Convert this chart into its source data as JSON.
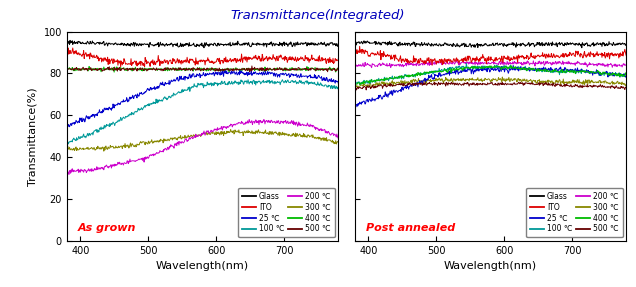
{
  "title": "Transmittance(Integrated)",
  "title_color": "#0000bb",
  "xlabel": "Wavelength(nm)",
  "ylabel": "Transmittance(%)",
  "xlim": [
    380,
    780
  ],
  "ylim": [
    0,
    100
  ],
  "yticks": [
    0,
    20,
    40,
    60,
    80,
    100
  ],
  "label1": "As grown",
  "label2": "Post annealed",
  "label_color": "red",
  "colors": {
    "Glass": "#000000",
    "ITO": "#dd0000",
    "25": "#0000cc",
    "100": "#009999",
    "200": "#cc00cc",
    "300": "#888800",
    "400": "#00bb00",
    "500": "#660000"
  },
  "left_curves": {
    "Glass": [
      [
        380,
        95
      ],
      [
        450,
        94
      ],
      [
        550,
        93.5
      ],
      [
        650,
        94
      ],
      [
        750,
        94
      ],
      [
        780,
        94
      ]
    ],
    "ITO": [
      [
        380,
        91
      ],
      [
        420,
        88
      ],
      [
        460,
        85
      ],
      [
        500,
        85
      ],
      [
        550,
        86
      ],
      [
        600,
        86
      ],
      [
        650,
        87
      ],
      [
        700,
        87
      ],
      [
        750,
        87
      ],
      [
        780,
        86
      ]
    ],
    "400": [
      [
        380,
        82
      ],
      [
        450,
        82
      ],
      [
        550,
        82
      ],
      [
        650,
        82
      ],
      [
        750,
        82
      ],
      [
        780,
        82
      ]
    ],
    "500": [
      [
        380,
        82
      ],
      [
        450,
        82
      ],
      [
        550,
        82
      ],
      [
        650,
        82
      ],
      [
        750,
        82
      ],
      [
        780,
        82
      ]
    ],
    "100": [
      [
        380,
        47
      ],
      [
        420,
        52
      ],
      [
        460,
        58
      ],
      [
        500,
        65
      ],
      [
        540,
        70
      ],
      [
        570,
        74
      ],
      [
        600,
        75
      ],
      [
        640,
        76
      ],
      [
        680,
        76
      ],
      [
        720,
        76
      ],
      [
        750,
        75
      ],
      [
        780,
        73
      ]
    ],
    "25": [
      [
        380,
        55
      ],
      [
        420,
        60
      ],
      [
        460,
        66
      ],
      [
        500,
        72
      ],
      [
        540,
        77
      ],
      [
        570,
        79
      ],
      [
        600,
        80
      ],
      [
        640,
        80
      ],
      [
        680,
        80
      ],
      [
        720,
        79
      ],
      [
        750,
        78
      ],
      [
        780,
        76
      ]
    ],
    "300": [
      [
        380,
        44
      ],
      [
        420,
        44
      ],
      [
        460,
        45
      ],
      [
        500,
        47
      ],
      [
        540,
        49
      ],
      [
        580,
        51
      ],
      [
        620,
        52
      ],
      [
        660,
        52
      ],
      [
        700,
        51
      ],
      [
        740,
        50
      ],
      [
        780,
        47
      ]
    ],
    "200": [
      [
        380,
        33
      ],
      [
        420,
        34
      ],
      [
        460,
        37
      ],
      [
        500,
        40
      ],
      [
        540,
        46
      ],
      [
        570,
        50
      ],
      [
        600,
        53
      ],
      [
        630,
        56
      ],
      [
        660,
        57
      ],
      [
        700,
        57
      ],
      [
        740,
        55
      ],
      [
        780,
        50
      ]
    ]
  },
  "right_curves": {
    "Glass": [
      [
        380,
        95
      ],
      [
        450,
        94
      ],
      [
        550,
        93.5
      ],
      [
        650,
        94
      ],
      [
        750,
        94
      ],
      [
        780,
        94
      ]
    ],
    "ITO": [
      [
        380,
        91
      ],
      [
        420,
        89
      ],
      [
        460,
        86
      ],
      [
        500,
        86
      ],
      [
        550,
        87
      ],
      [
        600,
        87
      ],
      [
        650,
        88
      ],
      [
        700,
        89
      ],
      [
        750,
        89
      ],
      [
        780,
        89
      ]
    ],
    "200": [
      [
        380,
        84
      ],
      [
        420,
        84
      ],
      [
        460,
        84
      ],
      [
        500,
        85
      ],
      [
        550,
        85
      ],
      [
        600,
        85
      ],
      [
        650,
        85
      ],
      [
        700,
        85
      ],
      [
        750,
        84
      ],
      [
        780,
        84
      ]
    ],
    "400": [
      [
        380,
        75
      ],
      [
        420,
        77
      ],
      [
        460,
        79
      ],
      [
        500,
        81
      ],
      [
        530,
        82
      ],
      [
        560,
        83
      ],
      [
        600,
        83
      ],
      [
        640,
        82
      ],
      [
        680,
        81
      ],
      [
        720,
        81
      ],
      [
        750,
        80
      ],
      [
        780,
        79
      ]
    ],
    "100": [
      [
        380,
        75
      ],
      [
        420,
        77
      ],
      [
        460,
        79
      ],
      [
        500,
        81
      ],
      [
        530,
        83
      ],
      [
        560,
        83
      ],
      [
        600,
        83
      ],
      [
        640,
        82
      ],
      [
        680,
        81
      ],
      [
        720,
        81
      ],
      [
        750,
        80
      ],
      [
        780,
        79
      ]
    ],
    "25": [
      [
        380,
        65
      ],
      [
        420,
        69
      ],
      [
        460,
        74
      ],
      [
        500,
        79
      ],
      [
        530,
        81
      ],
      [
        560,
        82
      ],
      [
        600,
        82
      ],
      [
        640,
        82
      ],
      [
        680,
        82
      ],
      [
        720,
        81
      ],
      [
        750,
        80
      ],
      [
        780,
        79
      ]
    ],
    "300": [
      [
        380,
        74
      ],
      [
        420,
        75
      ],
      [
        460,
        76
      ],
      [
        500,
        77
      ],
      [
        540,
        77
      ],
      [
        580,
        77
      ],
      [
        620,
        77
      ],
      [
        660,
        76
      ],
      [
        700,
        76
      ],
      [
        740,
        76
      ],
      [
        780,
        75
      ]
    ],
    "500": [
      [
        380,
        73
      ],
      [
        420,
        74
      ],
      [
        460,
        75
      ],
      [
        500,
        75
      ],
      [
        540,
        75
      ],
      [
        580,
        75
      ],
      [
        620,
        75
      ],
      [
        660,
        75
      ],
      [
        700,
        74
      ],
      [
        740,
        74
      ],
      [
        780,
        73
      ]
    ]
  },
  "noise_levels": {
    "Glass": 0.5,
    "ITO": 0.8,
    "25": 0.6,
    "100": 0.5,
    "200": 0.5,
    "300": 0.5,
    "400": 0.4,
    "500": 0.4
  },
  "legend_entries": [
    [
      "Glass",
      "#000000"
    ],
    [
      "ITO",
      "#dd0000"
    ],
    [
      "25 ℃",
      "#0000cc"
    ],
    [
      "100 ℃",
      "#009999"
    ],
    [
      "200 ℃",
      "#cc00cc"
    ],
    [
      "300 ℃",
      "#888800"
    ],
    [
      "400 ℃",
      "#00bb00"
    ],
    [
      "500 ℃",
      "#660000"
    ]
  ]
}
